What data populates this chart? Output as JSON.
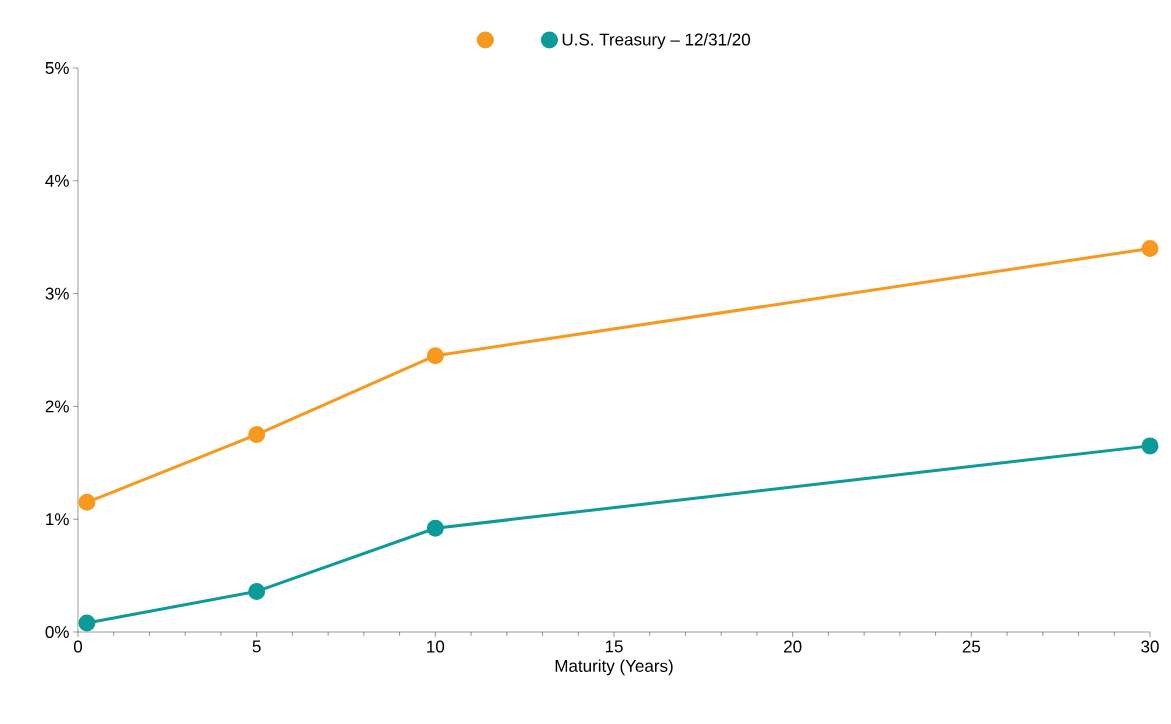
{
  "chart_data": {
    "type": "line",
    "xlabel": "Maturity (Years)",
    "x": [
      0.25,
      5,
      10,
      30
    ],
    "series": [
      {
        "color": "#f7991f",
        "values": [
          1.15,
          1.75,
          2.45,
          3.4
        ]
      },
      {
        "name": "U.S. Treasury – 12/31/20",
        "color": "#0c9b98",
        "values": [
          0.08,
          0.36,
          0.92,
          1.65
        ]
      }
    ],
    "xlim": [
      0,
      30
    ],
    "xticks": [
      0,
      5,
      10,
      15,
      20,
      25,
      30
    ],
    "ylim": [
      0,
      5
    ],
    "yticks": [
      {
        "value": 0,
        "label": "0%"
      },
      {
        "value": 1,
        "label": "1%"
      },
      {
        "value": 2,
        "label": "2%"
      },
      {
        "value": 3,
        "label": "3%"
      },
      {
        "value": 4,
        "label": "4%"
      },
      {
        "value": 5,
        "label": "5%"
      }
    ],
    "legend": "top",
    "marker": "circle",
    "line_style": "solid",
    "grid": false
  }
}
